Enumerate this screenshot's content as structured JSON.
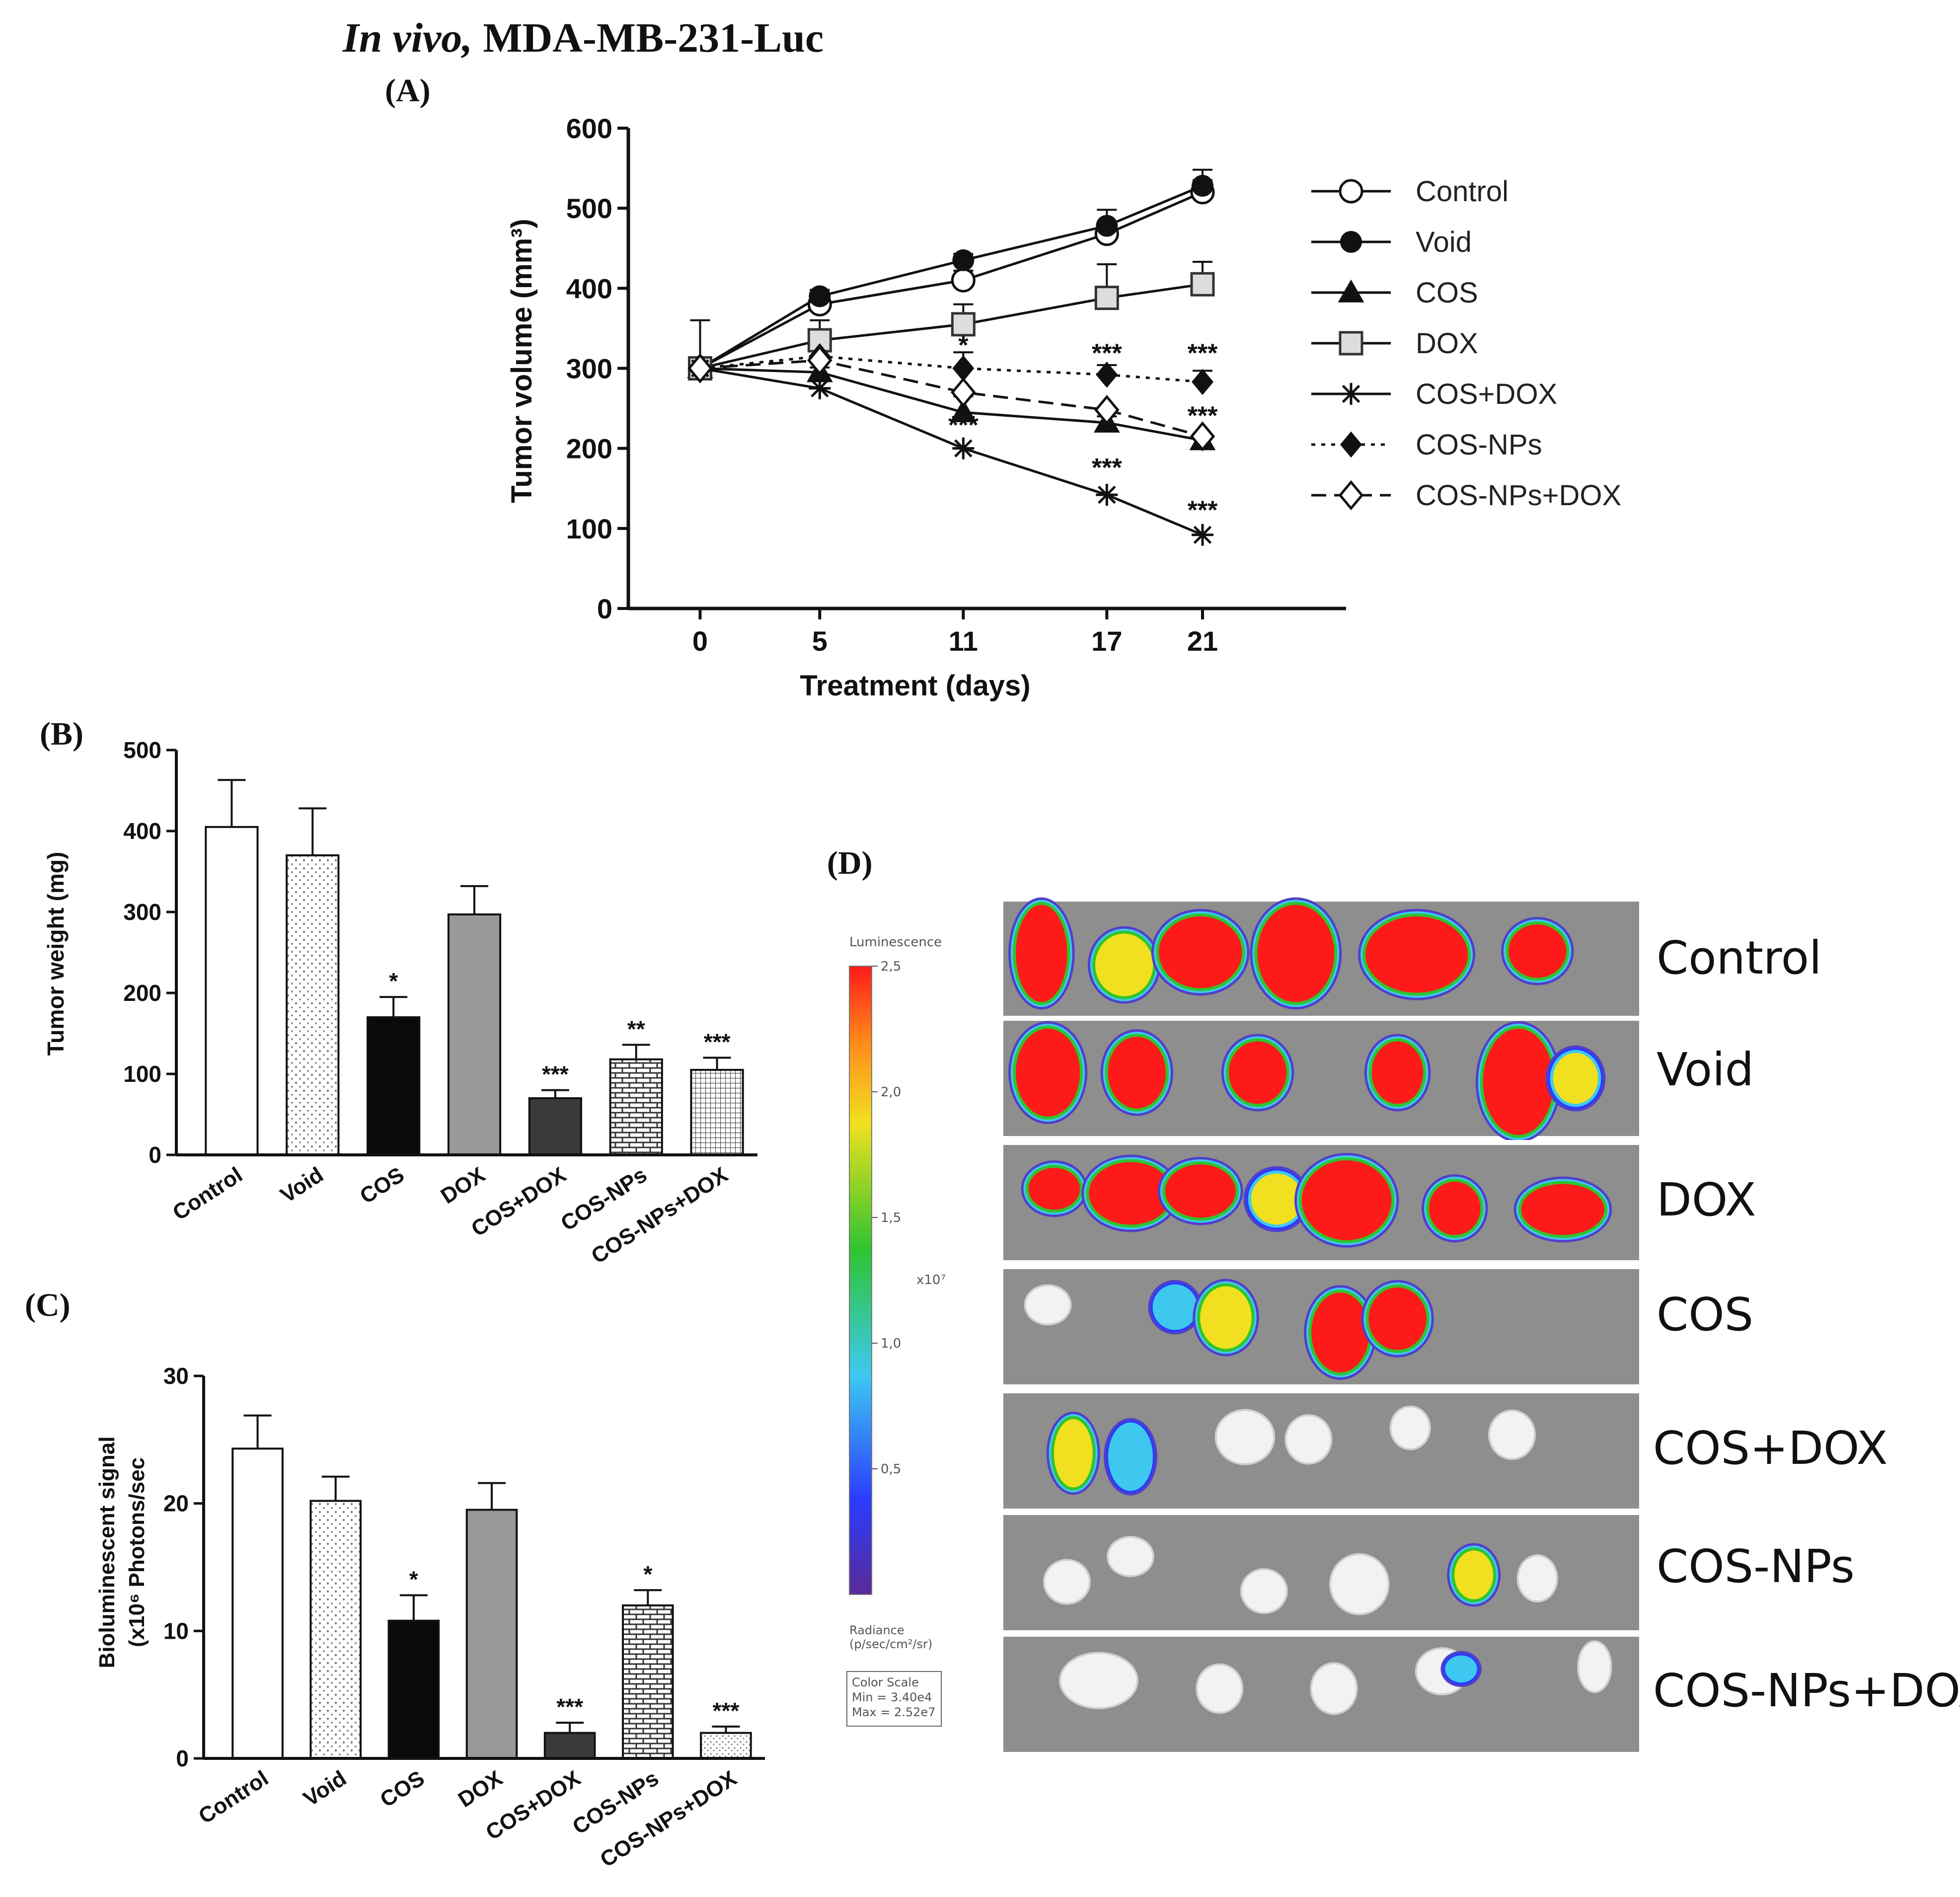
{
  "figure_title_italic": "In vivo,",
  "figure_title_rest": " MDA-MB-231-Luc",
  "panel_labels": {
    "a": "(A)",
    "b": "(B)",
    "c": "(C)",
    "d": "(D)"
  },
  "colors": {
    "red": "#ff1a1a",
    "green": "#2fc42f",
    "blue": "#2a3cff",
    "bg_gray": "#8c8c8c"
  },
  "chart_data": [
    {
      "id": "A",
      "type": "line",
      "title": "",
      "xlabel": "Treatment (days)",
      "ylabel": "Tumor volume (mm³)",
      "x": [
        0,
        5,
        11,
        17,
        21
      ],
      "xticklabels": [
        "0",
        "5",
        "11",
        "17",
        "21"
      ],
      "ylim": [
        0,
        600
      ],
      "yticks": [
        0,
        100,
        200,
        300,
        400,
        500,
        600
      ],
      "series": [
        {
          "name": "Control",
          "marker": "circle-open",
          "dash": "solid",
          "values": [
            300,
            380,
            410,
            468,
            520
          ],
          "err": [
            60,
            12,
            12,
            14,
            15
          ]
        },
        {
          "name": "Void",
          "marker": "circle-filled",
          "dash": "solid",
          "values": [
            300,
            390,
            435,
            478,
            528
          ],
          "err": [
            0,
            8,
            8,
            20,
            20
          ]
        },
        {
          "name": "COS",
          "marker": "triangle-filled",
          "dash": "solid",
          "values": [
            300,
            295,
            245,
            232,
            210
          ],
          "err": [
            0,
            6,
            20,
            8,
            8
          ]
        },
        {
          "name": "DOX",
          "marker": "square-open",
          "dash": "solid",
          "values": [
            300,
            335,
            355,
            388,
            405
          ],
          "err": [
            0,
            25,
            25,
            42,
            28
          ]
        },
        {
          "name": "COS+DOX",
          "marker": "star",
          "dash": "solid",
          "values": [
            300,
            275,
            200,
            142,
            92
          ],
          "err": [
            0,
            0,
            0,
            0,
            0
          ]
        },
        {
          "name": "COS-NPs",
          "marker": "diamond-filled",
          "dash": "dotted",
          "values": [
            300,
            315,
            300,
            292,
            283
          ],
          "err": [
            0,
            0,
            20,
            12,
            14
          ]
        },
        {
          "name": "COS-NPs+DOX",
          "marker": "diamond-open",
          "dash": "dashed",
          "values": [
            300,
            310,
            270,
            248,
            215
          ],
          "err": [
            0,
            0,
            0,
            0,
            0
          ]
        }
      ],
      "annotations": [
        {
          "x": 11,
          "y": 318,
          "text": "*"
        },
        {
          "x": 17,
          "y": 308,
          "text": "***"
        },
        {
          "x": 21,
          "y": 308,
          "text": "***"
        },
        {
          "x": 21,
          "y": 230,
          "text": "***"
        },
        {
          "x": 11,
          "y": 218,
          "text": "***"
        },
        {
          "x": 17,
          "y": 165,
          "text": "***"
        },
        {
          "x": 21,
          "y": 112,
          "text": "***"
        }
      ]
    },
    {
      "id": "B",
      "type": "bar",
      "xlabel": "",
      "ylabel": "Tumor weight (mg)",
      "categories": [
        "Control",
        "Void",
        "COS",
        "DOX",
        "COS+DOX",
        "COS-NPs",
        "COS-NPs+DOX"
      ],
      "values": [
        405,
        370,
        170,
        297,
        70,
        118,
        105
      ],
      "err": [
        58,
        58,
        25,
        35,
        10,
        18,
        15
      ],
      "sig": [
        "",
        "",
        "*",
        "",
        "***",
        "**",
        "***"
      ],
      "ylim": [
        0,
        500
      ],
      "yticks": [
        0,
        100,
        200,
        300,
        400,
        500
      ]
    },
    {
      "id": "C",
      "type": "bar",
      "xlabel": "",
      "ylabel_line1": "Bioluminescent signal",
      "ylabel_line2": "(x10⁶ Photons/sec",
      "categories": [
        "Control",
        "Void",
        "COS",
        "DOX",
        "COS+DOX",
        "COS-NPs",
        "COS-NPs+DOX"
      ],
      "values": [
        24.3,
        20.2,
        10.8,
        19.5,
        2.0,
        12.0,
        2.0
      ],
      "err": [
        2.6,
        1.9,
        2.0,
        2.1,
        0.8,
        1.2,
        0.5
      ],
      "sig": [
        "",
        "",
        "*",
        "",
        "***",
        "*",
        "***"
      ],
      "ylim": [
        0,
        30
      ],
      "yticks": [
        0,
        10,
        20,
        30
      ]
    }
  ],
  "colorbar": {
    "title": "Luminescence",
    "ticks": [
      {
        "v": 2.5,
        "label": "2,5"
      },
      {
        "v": 2.0,
        "label": "2,0"
      },
      {
        "v": 1.5,
        "label": "1,5"
      },
      {
        "v": 1.0,
        "label": "1,0"
      },
      {
        "v": 0.5,
        "label": "0,5"
      }
    ],
    "exponent": "x10⁷",
    "unit_line1": "Radiance",
    "unit_line2": "(p/sec/cm²/sr)",
    "scale_title": "Color Scale",
    "scale_min": "Min = 3.40e4",
    "scale_max": "Max = 2.52e7"
  },
  "imaging_rows": [
    {
      "label": "Control",
      "spots": [
        [
          0.06,
          0.45,
          0.07,
          0.8,
          1.0
        ],
        [
          0.19,
          0.55,
          0.08,
          0.5,
          0.55
        ],
        [
          0.31,
          0.44,
          0.12,
          0.58,
          0.95
        ],
        [
          0.46,
          0.45,
          0.11,
          0.8,
          0.95
        ],
        [
          0.65,
          0.46,
          0.15,
          0.62,
          1.0
        ],
        [
          0.84,
          0.43,
          0.08,
          0.42,
          0.85
        ]
      ],
      "blobs": []
    },
    {
      "label": "Void",
      "spots": [
        [
          0.07,
          0.45,
          0.09,
          0.72,
          1.0
        ],
        [
          0.21,
          0.45,
          0.08,
          0.58,
          0.95
        ],
        [
          0.4,
          0.45,
          0.08,
          0.5,
          0.9
        ],
        [
          0.62,
          0.45,
          0.07,
          0.5,
          0.85
        ],
        [
          0.81,
          0.53,
          0.1,
          0.88,
          1.0
        ],
        [
          0.9,
          0.5,
          0.06,
          0.4,
          0.4
        ]
      ],
      "blobs": []
    },
    {
      "label": "DOX",
      "spots": [
        [
          0.08,
          0.38,
          0.07,
          0.32,
          0.85
        ],
        [
          0.2,
          0.42,
          0.12,
          0.5,
          0.95
        ],
        [
          0.31,
          0.4,
          0.1,
          0.42,
          0.9
        ],
        [
          0.43,
          0.47,
          0.07,
          0.4,
          0.4
        ],
        [
          0.54,
          0.48,
          0.13,
          0.65,
          0.95
        ],
        [
          0.71,
          0.55,
          0.07,
          0.42,
          0.85
        ],
        [
          0.88,
          0.56,
          0.12,
          0.4,
          0.9
        ]
      ],
      "blobs": []
    },
    {
      "label": "COS",
      "spots": [
        [
          0.27,
          0.33,
          0.05,
          0.3,
          0.3
        ],
        [
          0.35,
          0.42,
          0.07,
          0.5,
          0.7
        ],
        [
          0.53,
          0.55,
          0.08,
          0.65,
          0.9
        ],
        [
          0.62,
          0.43,
          0.08,
          0.5,
          0.9
        ]
      ],
      "blobs": [
        [
          0.07,
          0.31,
          0.05,
          0.22
        ]
      ]
    },
    {
      "label": "COS+DOX",
      "spots": [
        [
          0.11,
          0.52,
          0.05,
          0.55,
          0.62
        ],
        [
          0.2,
          0.55,
          0.05,
          0.5,
          0.28
        ]
      ],
      "blobs": [
        [
          0.38,
          0.38,
          0.07,
          0.35
        ],
        [
          0.64,
          0.3,
          0.04,
          0.25
        ],
        [
          0.48,
          0.4,
          0.05,
          0.3
        ],
        [
          0.8,
          0.36,
          0.05,
          0.3
        ]
      ]
    },
    {
      "label": "COS-NPs",
      "spots": [
        [
          0.74,
          0.52,
          0.05,
          0.38,
          0.55
        ]
      ],
      "blobs": [
        [
          0.1,
          0.58,
          0.05,
          0.26
        ],
        [
          0.2,
          0.36,
          0.05,
          0.22
        ],
        [
          0.41,
          0.66,
          0.05,
          0.26
        ],
        [
          0.56,
          0.6,
          0.07,
          0.4
        ],
        [
          0.84,
          0.55,
          0.04,
          0.28
        ]
      ]
    },
    {
      "label": "COS-NPs+DOX",
      "spots": [
        [
          0.72,
          0.28,
          0.03,
          0.14,
          0.15
        ]
      ],
      "blobs": [
        [
          0.15,
          0.38,
          0.1,
          0.36
        ],
        [
          0.34,
          0.45,
          0.05,
          0.3
        ],
        [
          0.52,
          0.45,
          0.05,
          0.32
        ],
        [
          0.69,
          0.3,
          0.06,
          0.28
        ],
        [
          0.93,
          0.26,
          0.03,
          0.32
        ]
      ]
    }
  ]
}
